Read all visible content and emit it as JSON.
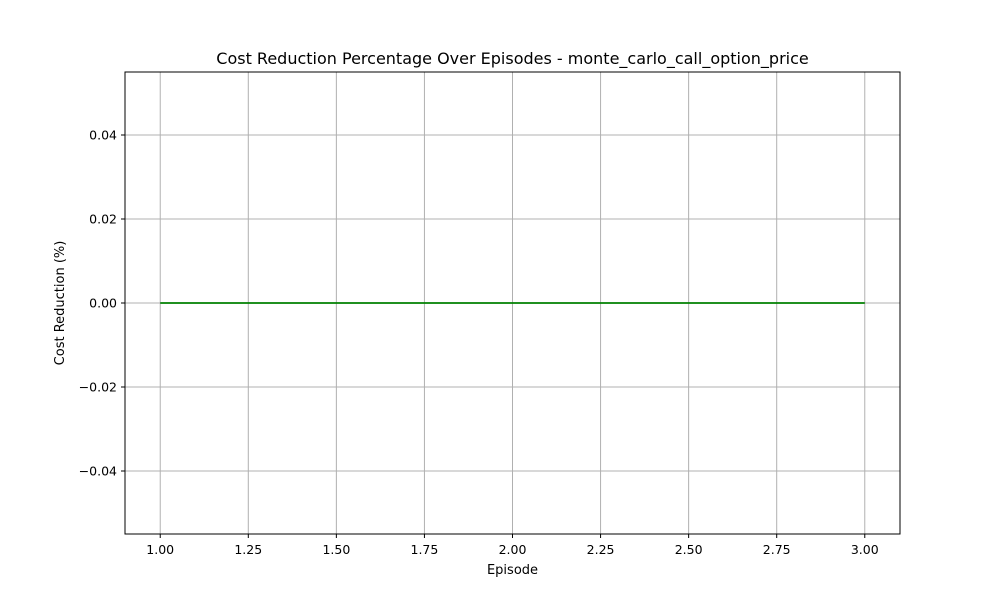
{
  "chart_data": {
    "type": "line",
    "title": "Cost Reduction Percentage Over Episodes - monte_carlo_call_option_price",
    "xlabel": "Episode",
    "ylabel": "Cost Reduction (%)",
    "xlim": [
      0.9,
      3.1
    ],
    "ylim": [
      -0.055,
      0.055
    ],
    "xticks": [
      1.0,
      1.25,
      1.5,
      1.75,
      2.0,
      2.25,
      2.5,
      2.75,
      3.0
    ],
    "xtick_labels": [
      "1.00",
      "1.25",
      "1.50",
      "1.75",
      "2.00",
      "2.25",
      "2.50",
      "2.75",
      "3.00"
    ],
    "yticks": [
      -0.04,
      -0.02,
      0.0,
      0.02,
      0.04
    ],
    "ytick_labels": [
      "−0.04",
      "−0.02",
      "0.00",
      "0.02",
      "0.04"
    ],
    "grid": true,
    "series": [
      {
        "color": "#008000",
        "x": [
          1,
          2,
          3
        ],
        "y": [
          0.0,
          0.0,
          0.0
        ]
      }
    ]
  }
}
